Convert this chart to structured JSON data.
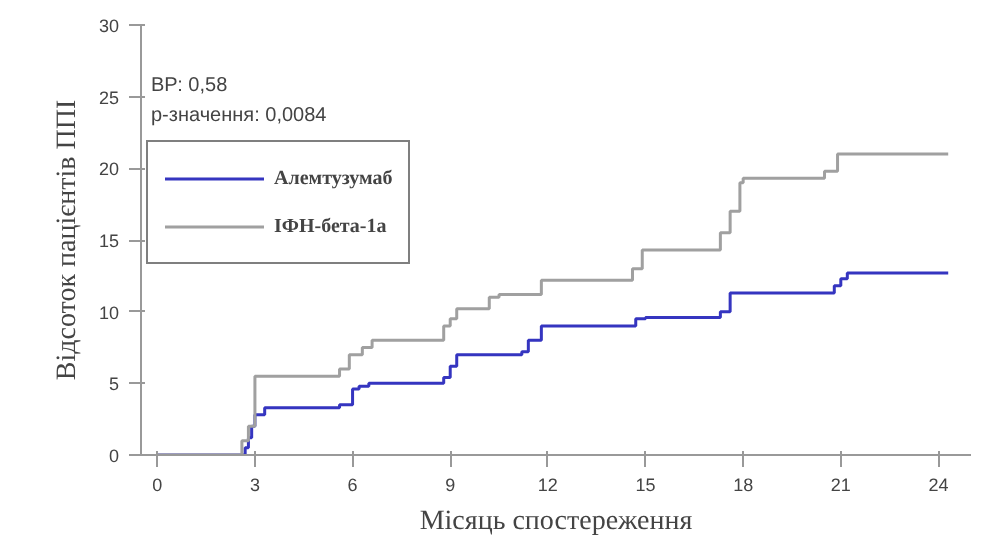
{
  "chart_data": {
    "type": "step",
    "xlabel": "Місяць спостереження",
    "ylabel": "Відсоток пацієнтів ППІ",
    "xlim": [
      -0.5,
      25
    ],
    "ylim": [
      0,
      30
    ],
    "xticks": [
      0,
      3,
      6,
      9,
      12,
      15,
      18,
      21,
      24
    ],
    "yticks": [
      0,
      5,
      10,
      15,
      20,
      25,
      30
    ],
    "grid": false,
    "legend": "top left",
    "annotations": [
      "ВР: 0,58",
      "р-значення: 0,0084"
    ],
    "series": [
      {
        "name": "Алемтузумаб",
        "color": "#3535c0",
        "x": [
          0,
          2.7,
          2.8,
          2.9,
          3.0,
          3.3,
          5.6,
          6.0,
          6.2,
          6.5,
          8.8,
          9.0,
          9.2,
          11.2,
          11.4,
          11.8,
          14.7,
          15.0,
          17.3,
          17.6,
          18.0,
          20.8,
          21.0,
          21.2,
          24.3
        ],
        "values": [
          0,
          0.5,
          1.2,
          2.0,
          2.8,
          3.3,
          3.5,
          4.6,
          4.8,
          5.0,
          5.4,
          6.2,
          7.0,
          7.2,
          8.0,
          9.0,
          9.5,
          9.6,
          10.0,
          11.3,
          11.3,
          11.8,
          12.3,
          12.7,
          12.7
        ]
      },
      {
        "name": "ІФН-бета-1а",
        "color": "#a0a0a0",
        "x": [
          0,
          2.6,
          2.8,
          3.0,
          5.6,
          5.9,
          6.3,
          6.6,
          8.8,
          9.0,
          9.2,
          10.2,
          10.5,
          11.8,
          14.6,
          14.9,
          17.3,
          17.6,
          17.9,
          18.0,
          20.5,
          20.9,
          24.3
        ],
        "values": [
          0,
          1.0,
          2.0,
          5.5,
          6.0,
          7.0,
          7.5,
          8.0,
          9.0,
          9.5,
          10.2,
          11.0,
          11.2,
          12.2,
          13.0,
          14.3,
          15.5,
          17.0,
          19.0,
          19.3,
          19.8,
          21.0,
          21.0
        ]
      }
    ]
  }
}
